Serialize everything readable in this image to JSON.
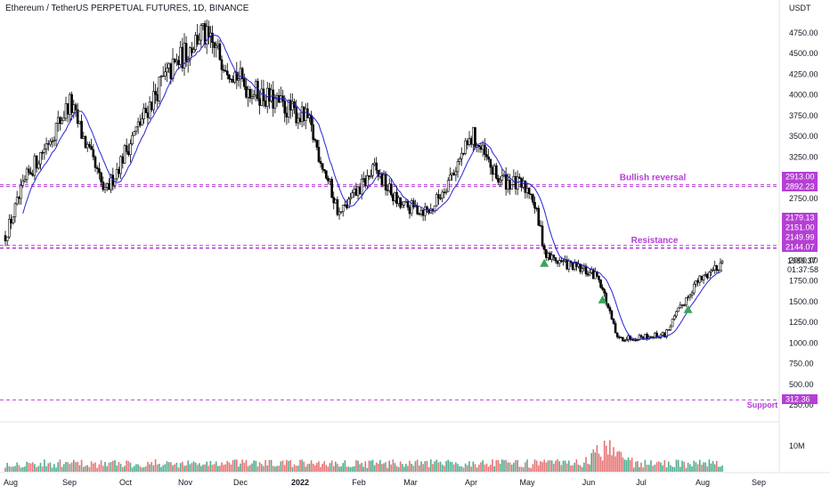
{
  "header": {
    "title": "Ethereum / TetherUS PERPETUAL FUTURES, 1D, BINANCE",
    "currency": "USDT"
  },
  "colors": {
    "up": "#ffffff",
    "down": "#000000",
    "wick": "#000000",
    "ma": "#2424d6",
    "level": "#b43fd4",
    "signal": "#3aa35a",
    "vol_up": "#2e9e7a",
    "vol_down": "#e35b5b"
  },
  "price_axis": {
    "ticks": [
      "4750.00",
      "4500.00",
      "4250.00",
      "4000.00",
      "3750.00",
      "3500.00",
      "3250.00",
      "3000.00",
      "2750.00",
      "2500.00",
      "2250.00",
      "2000.00",
      "1750.00",
      "1500.00",
      "1250.00",
      "1000.00",
      "750.00",
      "500.00",
      "250.00"
    ],
    "last_price": "1989.37",
    "countdown": "01:37:58",
    "bullish_labels": [
      "2913.00",
      "2892.23"
    ],
    "resistance_labels": [
      "2179.13",
      "2151.00",
      "2149.99",
      "2144.07"
    ],
    "support_label": "312.36",
    "volume_tick": "10M"
  },
  "time_axis": [
    "Aug",
    "Sep",
    "Oct",
    "Nov",
    "Dec",
    "2022",
    "Feb",
    "Mar",
    "Apr",
    "May",
    "Jun",
    "Jul",
    "Aug",
    "Sep"
  ],
  "annotations": {
    "bullish": "Bullish reversal",
    "resistance": "Resistance",
    "support": "Support"
  },
  "chart_data": {
    "type": "candlestick",
    "title": "Ethereum / TetherUS PERPETUAL FUTURES, 1D, BINANCE",
    "ylim": [
      250,
      4900
    ],
    "x_range": [
      "2021-08",
      "2022-09"
    ],
    "key_points": [
      {
        "date": "2021-08-01",
        "close": 2300
      },
      {
        "date": "2021-08-12",
        "close": 3000
      },
      {
        "date": "2021-09-03",
        "close": 3900
      },
      {
        "date": "2021-09-21",
        "close": 2800
      },
      {
        "date": "2021-10-01",
        "close": 3300
      },
      {
        "date": "2021-10-20",
        "close": 4150
      },
      {
        "date": "2021-11-10",
        "close": 4750
      },
      {
        "date": "2021-12-04",
        "close": 4100
      },
      {
        "date": "2021-12-20",
        "close": 3900
      },
      {
        "date": "2022-01-05",
        "close": 3700
      },
      {
        "date": "2022-01-22",
        "close": 2550
      },
      {
        "date": "2022-02-10",
        "close": 3100
      },
      {
        "date": "2022-02-24",
        "close": 2650
      },
      {
        "date": "2022-03-12",
        "close": 2600
      },
      {
        "date": "2022-04-03",
        "close": 3500
      },
      {
        "date": "2022-04-15",
        "close": 3000
      },
      {
        "date": "2022-05-03",
        "close": 2850
      },
      {
        "date": "2022-05-11",
        "close": 2050
      },
      {
        "date": "2022-06-08",
        "close": 1800
      },
      {
        "date": "2022-06-18",
        "close": 1050
      },
      {
        "date": "2022-07-13",
        "close": 1100
      },
      {
        "date": "2022-07-28",
        "close": 1700
      },
      {
        "date": "2022-08-12",
        "close": 1989.37
      }
    ],
    "moving_average": true,
    "horizontal_levels": [
      {
        "name": "Bullish reversal",
        "values": [
          2913.0,
          2892.23
        ]
      },
      {
        "name": "Resistance",
        "values": [
          2179.13,
          2151.0,
          2149.99,
          2144.07
        ]
      },
      {
        "name": "Support",
        "values": [
          312.36
        ]
      }
    ],
    "buy_signals": [
      "2022-05-10",
      "2022-06-10",
      "2022-07-25"
    ],
    "volume": {
      "tick": "10M",
      "peak_month": "2022-06"
    }
  }
}
